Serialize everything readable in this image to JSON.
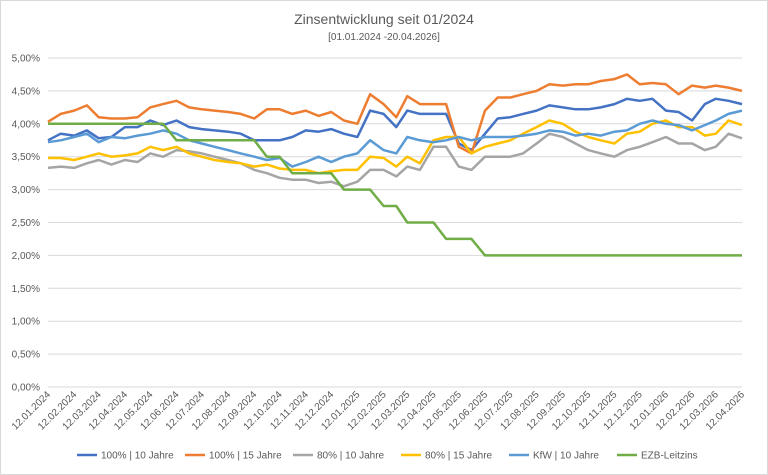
{
  "chart_data": {
    "type": "line",
    "title": "Zinsentwicklung seit 01/2024",
    "subtitle": "[01.01.2024 -20.04.2026]",
    "x": [
      "12.01.2024",
      "27.01.2024",
      "12.02.2024",
      "27.02.2024",
      "12.03.2024",
      "27.03.2024",
      "12.04.2024",
      "27.04.2024",
      "12.05.2024",
      "27.05.2024",
      "12.06.2024",
      "27.06.2024",
      "12.07.2024",
      "27.07.2024",
      "12.08.2024",
      "27.08.2024",
      "12.09.2024",
      "27.09.2024",
      "12.10.2024",
      "27.10.2024",
      "12.11.2024",
      "27.11.2024",
      "12.12.2024",
      "27.12.2024",
      "12.01.2025",
      "27.01.2025",
      "12.02.2025",
      "27.02.2025",
      "12.03.2025",
      "27.03.2025",
      "12.04.2025",
      "27.04.2025",
      "12.05.2025",
      "27.05.2025",
      "12.06.2025",
      "27.06.2025",
      "12.07.2025",
      "27.07.2025",
      "12.08.2025",
      "27.08.2025",
      "12.09.2025",
      "27.09.2025",
      "12.10.2025",
      "27.10.2025",
      "12.11.2025",
      "27.11.2025",
      "12.12.2025",
      "27.12.2025",
      "12.01.2026",
      "27.01.2026",
      "12.02.2026",
      "27.02.2026",
      "12.03.2026",
      "27.03.2026",
      "12.04.2026"
    ],
    "xticks": [
      "12.01.2024",
      "12.02.2024",
      "12.03.2024",
      "12.04.2024",
      "12.05.2024",
      "12.06.2024",
      "12.07.2024",
      "12.08.2024",
      "12.09.2024",
      "12.10.2024",
      "12.11.2024",
      "12.12.2024",
      "12.01.2025",
      "12.02.2025",
      "12.03.2025",
      "12.04.2025",
      "12.05.2025",
      "12.06.2025",
      "12.07.2025",
      "12.08.2025",
      "12.09.2025",
      "12.10.2025",
      "12.11.2025",
      "12.12.2025",
      "12.01.2026",
      "12.02.2026",
      "12.03.2026",
      "12.04.2026"
    ],
    "ylim": [
      0,
      5
    ],
    "yticks": [
      {
        "value": 0,
        "label": "0,00%"
      },
      {
        "value": 0.5,
        "label": "0,50%"
      },
      {
        "value": 1,
        "label": "1,00%"
      },
      {
        "value": 1.5,
        "label": "1,50%"
      },
      {
        "value": 2,
        "label": "2,00%"
      },
      {
        "value": 2.5,
        "label": "2,50%"
      },
      {
        "value": 3,
        "label": "3,00%"
      },
      {
        "value": 3.5,
        "label": "3,50%"
      },
      {
        "value": 4,
        "label": "4,00%"
      },
      {
        "value": 4.5,
        "label": "4,50%"
      },
      {
        "value": 5,
        "label": "5,00%"
      }
    ],
    "grid": true,
    "legend": "bottom",
    "series": [
      {
        "name": "100% | 10 Jahre",
        "color": "#4472c4",
        "values": [
          3.75,
          3.85,
          3.82,
          3.9,
          3.78,
          3.8,
          3.95,
          3.95,
          4.05,
          3.98,
          4.05,
          3.95,
          3.92,
          3.9,
          3.88,
          3.85,
          3.75,
          3.75,
          3.75,
          3.8,
          3.9,
          3.88,
          3.92,
          3.85,
          3.8,
          4.2,
          4.15,
          3.95,
          4.2,
          4.15,
          4.15,
          4.15,
          3.7,
          3.6,
          3.85,
          4.08,
          4.1,
          4.15,
          4.2,
          4.28,
          4.25,
          4.22,
          4.22,
          4.25,
          4.3,
          4.38,
          4.35,
          4.38,
          4.2,
          4.18,
          4.05,
          4.3,
          4.38,
          4.35,
          4.3
        ]
      },
      {
        "name": "100% | 15 Jahre",
        "color": "#ed7d31",
        "values": [
          4.03,
          4.15,
          4.2,
          4.28,
          4.1,
          4.08,
          4.08,
          4.1,
          4.25,
          4.3,
          4.35,
          4.25,
          4.22,
          4.2,
          4.18,
          4.15,
          4.08,
          4.22,
          4.22,
          4.15,
          4.2,
          4.12,
          4.18,
          4.05,
          4.0,
          4.45,
          4.3,
          4.1,
          4.42,
          4.3,
          4.3,
          4.3,
          3.65,
          3.55,
          4.2,
          4.4,
          4.4,
          4.45,
          4.5,
          4.6,
          4.58,
          4.6,
          4.6,
          4.65,
          4.68,
          4.75,
          4.6,
          4.62,
          4.6,
          4.45,
          4.58,
          4.55,
          4.58,
          4.55,
          4.5
        ]
      },
      {
        "name": "80% | 10 Jahre",
        "color": "#a5a5a5",
        "values": [
          3.33,
          3.35,
          3.33,
          3.4,
          3.45,
          3.38,
          3.45,
          3.42,
          3.55,
          3.5,
          3.6,
          3.58,
          3.55,
          3.5,
          3.45,
          3.4,
          3.3,
          3.25,
          3.18,
          3.15,
          3.15,
          3.1,
          3.12,
          3.05,
          3.12,
          3.3,
          3.3,
          3.2,
          3.35,
          3.3,
          3.65,
          3.65,
          3.35,
          3.3,
          3.5,
          3.5,
          3.5,
          3.55,
          3.7,
          3.85,
          3.8,
          3.7,
          3.6,
          3.55,
          3.5,
          3.6,
          3.65,
          3.72,
          3.8,
          3.7,
          3.7,
          3.6,
          3.65,
          3.85,
          3.78
        ]
      },
      {
        "name": "80% | 15 Jahre",
        "color": "#ffc000",
        "values": [
          3.48,
          3.48,
          3.45,
          3.5,
          3.55,
          3.5,
          3.52,
          3.55,
          3.65,
          3.6,
          3.65,
          3.55,
          3.5,
          3.45,
          3.42,
          3.4,
          3.35,
          3.38,
          3.32,
          3.3,
          3.3,
          3.25,
          3.28,
          3.3,
          3.3,
          3.5,
          3.48,
          3.35,
          3.5,
          3.4,
          3.75,
          3.8,
          3.8,
          3.55,
          3.65,
          3.7,
          3.75,
          3.85,
          3.95,
          4.05,
          4.0,
          3.88,
          3.8,
          3.75,
          3.7,
          3.85,
          3.88,
          4.0,
          4.05,
          3.95,
          3.95,
          3.82,
          3.85,
          4.05,
          3.98
        ]
      },
      {
        "name": "KfW | 10 Jahre",
        "color": "#5b9bd5",
        "values": [
          3.72,
          3.75,
          3.8,
          3.85,
          3.72,
          3.8,
          3.78,
          3.82,
          3.85,
          3.9,
          3.85,
          3.75,
          3.7,
          3.65,
          3.6,
          3.55,
          3.5,
          3.45,
          3.48,
          3.35,
          3.42,
          3.5,
          3.42,
          3.5,
          3.55,
          3.75,
          3.6,
          3.55,
          3.8,
          3.75,
          3.72,
          3.75,
          3.8,
          3.75,
          3.8,
          3.8,
          3.8,
          3.82,
          3.85,
          3.9,
          3.88,
          3.82,
          3.85,
          3.82,
          3.88,
          3.9,
          4.0,
          4.05,
          4.0,
          3.98,
          3.9,
          3.98,
          4.05,
          4.15,
          4.2
        ]
      },
      {
        "name": "EZB-Leitzins",
        "color": "#70ad47",
        "values": [
          4,
          4,
          4,
          4,
          4,
          4,
          4,
          4,
          4,
          4,
          3.75,
          3.75,
          3.75,
          3.75,
          3.75,
          3.75,
          3.75,
          3.5,
          3.5,
          3.25,
          3.25,
          3.25,
          3.25,
          3,
          3,
          3,
          2.75,
          2.75,
          2.5,
          2.5,
          2.5,
          2.25,
          2.25,
          2.25,
          2,
          2,
          2,
          2,
          2,
          2,
          2,
          2,
          2,
          2,
          2,
          2,
          2,
          2,
          2,
          2,
          2,
          2,
          2,
          2,
          2
        ]
      }
    ]
  }
}
